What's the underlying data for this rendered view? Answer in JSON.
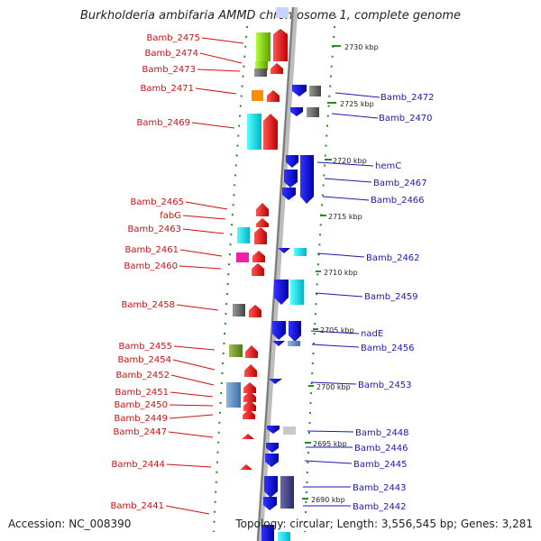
{
  "title": "Burkholderia ambifaria AMMD chromosome 1, complete genome",
  "accession": "Accession: NC_008390",
  "summary": "Topology: circular; Length: 3,556,545 bp; Genes: 3,281",
  "scale_labels": [
    "2730 kbp",
    "2725 kbp",
    "2720 kbp",
    "2715 kbp",
    "2710 kbp",
    "2705 kbp",
    "2700 kbp",
    "2695 kbp",
    "2690 kbp"
  ],
  "left_genes": [
    "Bamb_2475",
    "Bamb_2474",
    "Bamb_2473",
    "Bamb_2471",
    "Bamb_2469",
    "Bamb_2465",
    "fabG",
    "Bamb_2463",
    "Bamb_2461",
    "Bamb_2460",
    "Bamb_2458",
    "Bamb_2455",
    "Bamb_2454",
    "Bamb_2452",
    "Bamb_2451",
    "Bamb_2450",
    "Bamb_2449",
    "Bamb_2447",
    "Bamb_2444",
    "Bamb_2441"
  ],
  "right_genes": [
    "Bamb_2472",
    "Bamb_2470",
    "hemC",
    "Bamb_2467",
    "Bamb_2466",
    "Bamb_2462",
    "Bamb_2459",
    "nadE",
    "Bamb_2456",
    "Bamb_2453",
    "Bamb_2448",
    "Bamb_2446",
    "Bamb_2445",
    "Bamb_2443",
    "Bamb_2442"
  ],
  "colors": {
    "left_label": "#cc1111",
    "right_label": "#1a1ab0",
    "forward_gene": "#ee1111",
    "reverse_gene": "#1111dd",
    "backbone": "#999999",
    "ruler_dots": "#2a8a2a"
  }
}
